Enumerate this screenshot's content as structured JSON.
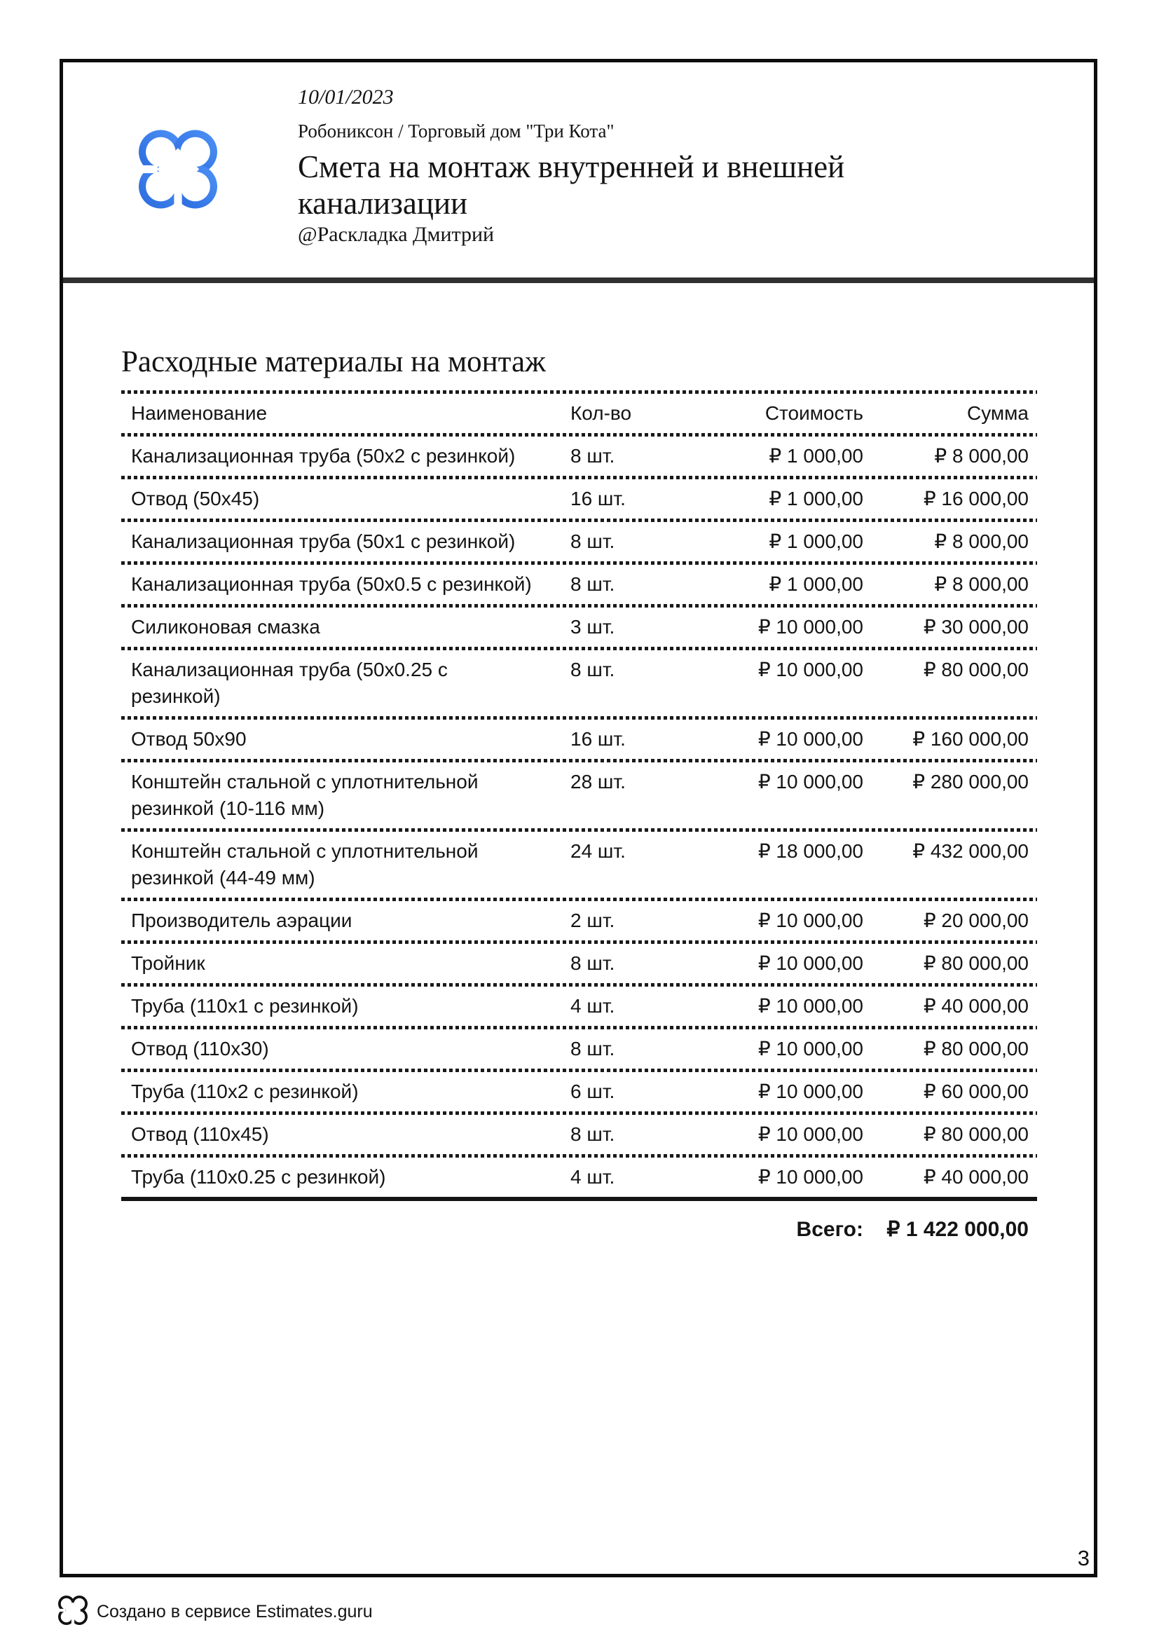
{
  "header": {
    "date": "10/01/2023",
    "company": "Робониксон / Торговый дом \"Три Кота\"",
    "title": "Смета на монтаж внутренней и внешней канализации",
    "handle": "@Раскладка Дмитрий"
  },
  "section": {
    "title": "Расходные материалы на монтаж"
  },
  "table": {
    "columns": {
      "name": "Наименование",
      "qty": "Кол-во",
      "price": "Стоимость",
      "sum": "Сумма"
    },
    "rows": [
      {
        "name": "Канализационная труба (50х2 с резинкой)",
        "qty": "8 шт.",
        "price": "₽ 1 000,00",
        "sum": "₽ 8 000,00"
      },
      {
        "name": "Отвод (50х45)",
        "qty": "16 шт.",
        "price": "₽ 1 000,00",
        "sum": "₽ 16 000,00"
      },
      {
        "name": "Канализационная труба (50х1 с резинкой)",
        "qty": "8 шт.",
        "price": "₽ 1 000,00",
        "sum": "₽ 8 000,00"
      },
      {
        "name": "Канализационная труба (50х0.5 с резинкой)",
        "qty": "8 шт.",
        "price": "₽ 1 000,00",
        "sum": "₽ 8 000,00"
      },
      {
        "name": "Силиконовая смазка",
        "qty": "3 шт.",
        "price": "₽ 10 000,00",
        "sum": "₽ 30 000,00"
      },
      {
        "name": "Канализационная труба (50х0.25 с резинкой)",
        "qty": "8 шт.",
        "price": "₽ 10 000,00",
        "sum": "₽ 80 000,00"
      },
      {
        "name": "Отвод 50х90",
        "qty": "16 шт.",
        "price": "₽ 10 000,00",
        "sum": "₽ 160 000,00"
      },
      {
        "name": "Конштейн стальной с уплотнительной резинкой (10-116 мм)",
        "qty": "28 шт.",
        "price": "₽ 10 000,00",
        "sum": "₽ 280 000,00"
      },
      {
        "name": "Конштейн стальной с уплотнительной резинкой (44-49 мм)",
        "qty": "24 шт.",
        "price": "₽ 18 000,00",
        "sum": "₽ 432 000,00"
      },
      {
        "name": "Производитель аэрации",
        "qty": "2 шт.",
        "price": "₽ 10 000,00",
        "sum": "₽ 20 000,00"
      },
      {
        "name": "Тройник",
        "qty": "8 шт.",
        "price": "₽ 10 000,00",
        "sum": "₽ 80 000,00"
      },
      {
        "name": "Труба (110х1 с резинкой)",
        "qty": "4 шт.",
        "price": "₽ 10 000,00",
        "sum": "₽ 40 000,00"
      },
      {
        "name": "Отвод (110х30)",
        "qty": "8 шт.",
        "price": "₽ 10 000,00",
        "sum": "₽ 80 000,00"
      },
      {
        "name": "Труба (110х2 с резинкой)",
        "qty": "6 шт.",
        "price": "₽ 10 000,00",
        "sum": "₽ 60 000,00"
      },
      {
        "name": "Отвод (110х45)",
        "qty": "8 шт.",
        "price": "₽ 10 000,00",
        "sum": "₽ 80 000,00"
      },
      {
        "name": "Труба (110х0.25 с резинкой)",
        "qty": "4 шт.",
        "price": "₽ 10 000,00",
        "sum": "₽ 40 000,00"
      }
    ],
    "total_label": "Всего:",
    "total_value": "₽ 1 422 000,00"
  },
  "footer": {
    "page_number": "3",
    "credit": "Создано в сервисе Estimates.guru"
  },
  "colors": {
    "logo_blue_light": "#4e93f7",
    "logo_blue_dark": "#2a69dd",
    "text": "#141414",
    "divider": "#303030"
  }
}
